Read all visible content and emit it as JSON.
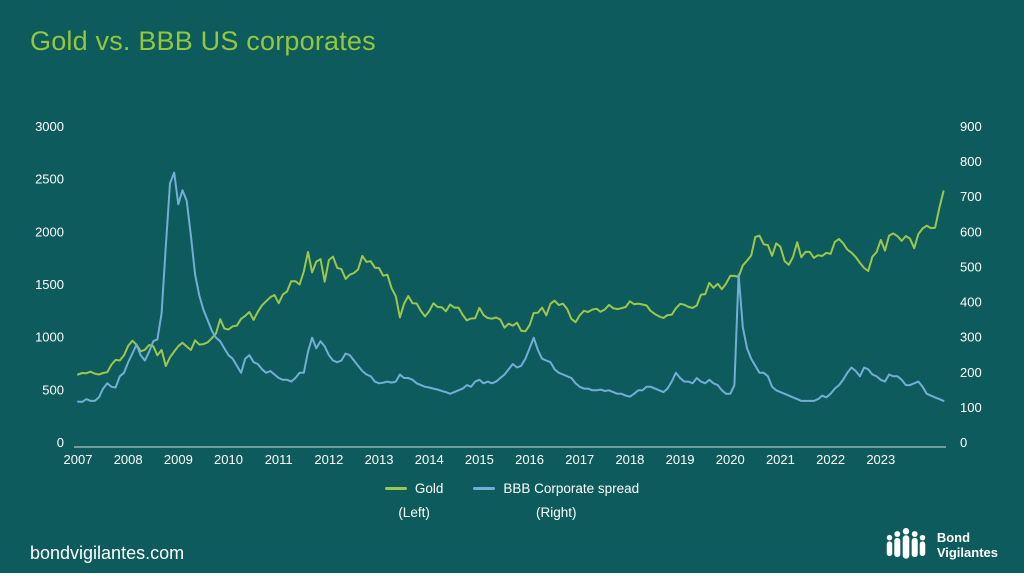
{
  "title": "Gold vs. BBB US corporates",
  "footer": {
    "website": "bondvigilantes.com",
    "logo_line1": "Bond",
    "logo_line2": "Vigilantes"
  },
  "colors": {
    "background": "#0d5b5c",
    "title": "#93c83e",
    "gold_line": "#9dc74c",
    "spread_line": "#72aed6",
    "axis_text": "#ffffff"
  },
  "chart_data": {
    "type": "line",
    "title": "Gold vs. BBB US corporates",
    "x_min": 2007,
    "x_max": 2024.3,
    "points_per_year": 12,
    "x_tick_labels": [
      "2007",
      "2008",
      "2009",
      "2010",
      "2011",
      "2012",
      "2013",
      "2014",
      "2015",
      "2016",
      "2017",
      "2018",
      "2019",
      "2020",
      "2021",
      "2022",
      "2023"
    ],
    "left_axis": {
      "min": 0,
      "max": 3000,
      "ticks": [
        0,
        500,
        1000,
        1500,
        2000,
        2500,
        3000
      ]
    },
    "right_axis": {
      "min": 0,
      "max": 900,
      "ticks": [
        0,
        100,
        200,
        300,
        400,
        500,
        600,
        700,
        800,
        900
      ]
    },
    "grid": false,
    "legend_position": "bottom-center",
    "series": [
      {
        "name": "Gold",
        "sub_label": "(Left)",
        "axis": "left",
        "slug": "gold-line",
        "color_key": "gold_line",
        "values": [
          650,
          665,
          663,
          677,
          659,
          650,
          665,
          672,
          743,
          789,
          783,
          833,
          923,
          971,
          933,
          871,
          885,
          930,
          918,
          833,
          884,
          730,
          814,
          869,
          919,
          952,
          916,
          883,
          975,
          934,
          939,
          955,
          995,
          1040,
          1175,
          1087,
          1078,
          1108,
          1115,
          1179,
          1207,
          1244,
          1169,
          1246,
          1307,
          1346,
          1383,
          1405,
          1327,
          1411,
          1439,
          1535,
          1536,
          1505,
          1628,
          1813,
          1620,
          1722,
          1746,
          1531,
          1737,
          1770,
          1662,
          1651,
          1558,
          1598,
          1614,
          1648,
          1776,
          1719,
          1726,
          1664,
          1661,
          1588,
          1598,
          1469,
          1394,
          1192,
          1323,
          1396,
          1326,
          1324,
          1253,
          1202,
          1251,
          1326,
          1291,
          1288,
          1250,
          1315,
          1285,
          1285,
          1216,
          1164,
          1182,
          1184,
          1283,
          1214,
          1187,
          1180,
          1191,
          1172,
          1095,
          1134,
          1114,
          1142,
          1065,
          1060,
          1118,
          1234,
          1237,
          1285,
          1212,
          1322,
          1351,
          1309,
          1322,
          1272,
          1178,
          1147,
          1212,
          1255,
          1244,
          1266,
          1275,
          1246,
          1267,
          1311,
          1280,
          1271,
          1280,
          1291,
          1345,
          1318,
          1323,
          1315,
          1305,
          1252,
          1224,
          1202,
          1187,
          1214,
          1217,
          1279,
          1321,
          1313,
          1292,
          1283,
          1305,
          1409,
          1413,
          1520,
          1472,
          1511,
          1460,
          1514,
          1587,
          1586,
          1577,
          1686,
          1730,
          1780,
          1957,
          1968,
          1886,
          1879,
          1777,
          1895,
          1863,
          1728,
          1691,
          1767,
          1905,
          1763,
          1814,
          1814,
          1757,
          1783,
          1775,
          1806,
          1795,
          1909,
          1937,
          1897,
          1837,
          1807,
          1766,
          1711,
          1661,
          1633,
          1769,
          1812,
          1928,
          1827,
          1969,
          1990,
          1963,
          1919,
          1965,
          1940,
          1849,
          1984,
          2036,
          2063,
          2040,
          2044,
          2230,
          2390
        ]
      },
      {
        "name": "BBB Corporate spread",
        "sub_label": "(Right)",
        "axis": "right",
        "slug": "bbb-spread-line",
        "color_key": "spread_line",
        "values": [
          118,
          117,
          125,
          120,
          120,
          130,
          155,
          170,
          160,
          158,
          190,
          200,
          230,
          255,
          280,
          250,
          235,
          260,
          290,
          295,
          370,
          560,
          740,
          770,
          680,
          720,
          690,
          590,
          480,
          420,
          380,
          350,
          320,
          300,
          290,
          270,
          250,
          240,
          220,
          200,
          240,
          250,
          230,
          225,
          210,
          200,
          205,
          195,
          185,
          180,
          180,
          175,
          185,
          200,
          200,
          260,
          300,
          270,
          290,
          275,
          250,
          235,
          230,
          235,
          255,
          250,
          235,
          220,
          205,
          195,
          190,
          175,
          170,
          172,
          175,
          172,
          175,
          195,
          185,
          185,
          180,
          170,
          165,
          160,
          158,
          155,
          152,
          148,
          145,
          140,
          145,
          150,
          155,
          165,
          160,
          175,
          180,
          170,
          175,
          170,
          175,
          185,
          195,
          210,
          225,
          215,
          220,
          240,
          270,
          300,
          265,
          240,
          235,
          230,
          210,
          200,
          195,
          190,
          185,
          170,
          160,
          155,
          155,
          150,
          150,
          152,
          148,
          150,
          145,
          140,
          140,
          135,
          132,
          140,
          150,
          150,
          160,
          160,
          155,
          150,
          145,
          155,
          175,
          200,
          185,
          175,
          175,
          170,
          185,
          175,
          170,
          180,
          170,
          165,
          150,
          140,
          140,
          165,
          480,
          330,
          270,
          240,
          220,
          200,
          200,
          190,
          160,
          150,
          145,
          140,
          135,
          130,
          125,
          120,
          120,
          120,
          120,
          125,
          135,
          130,
          140,
          155,
          165,
          180,
          200,
          215,
          205,
          190,
          215,
          210,
          195,
          190,
          180,
          175,
          195,
          190,
          190,
          180,
          165,
          165,
          170,
          175,
          160,
          140,
          135,
          130,
          125,
          120
        ]
      }
    ]
  }
}
